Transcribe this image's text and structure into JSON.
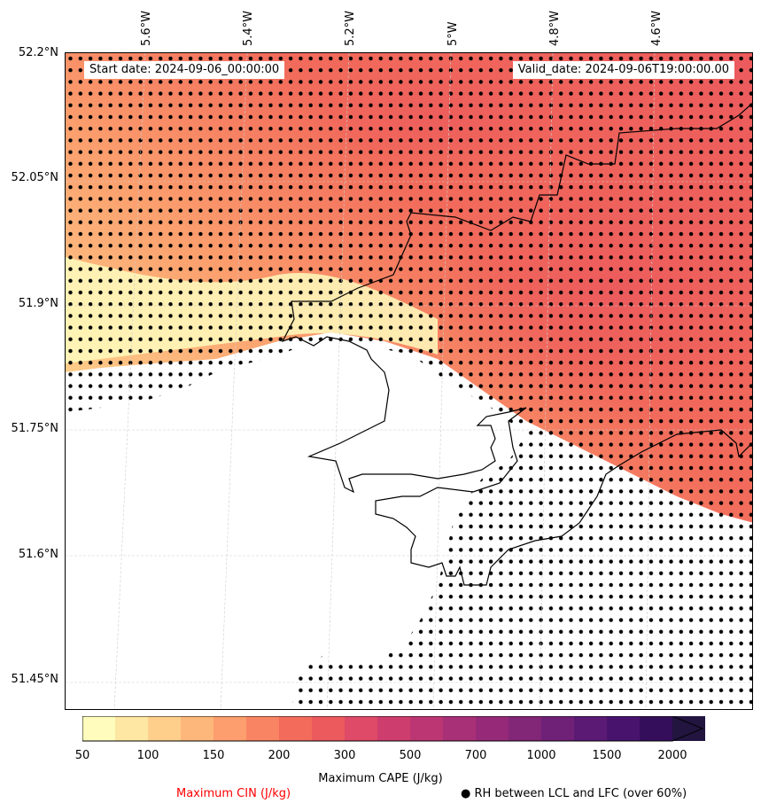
{
  "map": {
    "start_date": "Start date: 2024-09-06_00:00:00",
    "valid_date": "Valid_date: 2024-09-06T19:00:00.00",
    "lon_labels": [
      "5.6°W",
      "5.4°W",
      "5.2°W",
      "5°W",
      "4.8°W",
      "4.6°W"
    ],
    "lat_labels": [
      "52.2°N",
      "52.05°N",
      "51.9°N",
      "51.75°N",
      "51.6°N",
      "51.45°N"
    ],
    "lon_values": [
      -5.6,
      -5.4,
      -5.2,
      -5.0,
      -4.8,
      -4.6
    ],
    "lat_values": [
      52.2,
      52.05,
      51.9,
      51.75,
      51.6,
      51.45
    ]
  },
  "colorbar": {
    "title": "Maximum CAPE (J/kg)",
    "tick_labels": [
      "50",
      "100",
      "150",
      "200",
      "300",
      "500",
      "700",
      "1000",
      "1500",
      "2000"
    ],
    "levels": [
      50,
      75,
      100,
      125,
      150,
      175,
      200,
      250,
      300,
      400,
      500,
      600,
      700,
      850,
      1000,
      1250,
      1500,
      1750,
      2000,
      2500
    ],
    "colors": [
      "#fffcbd",
      "#fee7a3",
      "#fecf8b",
      "#feb77a",
      "#fc9e6d",
      "#f98463",
      "#f26b5b",
      "#ec5a5d",
      "#de4a67",
      "#cd3e6e",
      "#bb3673",
      "#a83076",
      "#962a78",
      "#822678",
      "#6f2077",
      "#5b1a73",
      "#48136d",
      "#340e5b",
      "#221540"
    ],
    "extend": "max"
  },
  "legend": {
    "cin_label": "Maximum CIN (J/kg)",
    "cin_color": "#ff0000",
    "rh_label": "● RH between LCL and LFC (over 60%)"
  }
}
